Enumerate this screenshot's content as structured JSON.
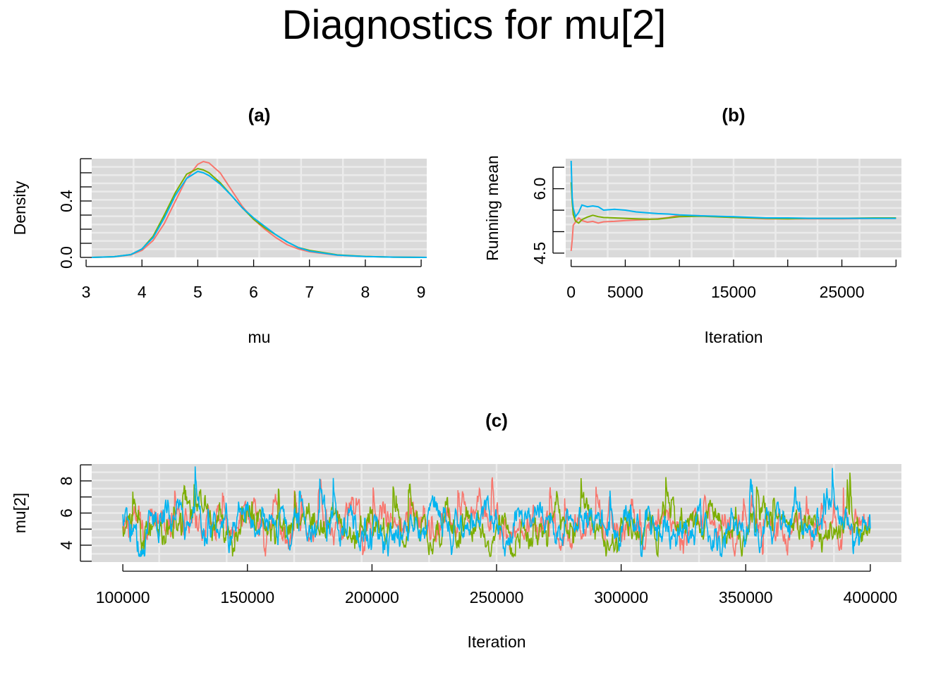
{
  "page": {
    "title": "Diagnostics for mu[2]",
    "chain_colors": [
      "#F8766D",
      "#7CAE00",
      "#00B4F0"
    ],
    "panel_background": "#DADADA",
    "grid_color": "#EBEBEB"
  },
  "chart_data": [
    {
      "id": "a",
      "type": "line",
      "title": "(a)",
      "xlabel": "mu",
      "ylabel": "Density",
      "xlim": [
        3.1,
        9.1
      ],
      "ylim": [
        0,
        0.7
      ],
      "xticks": [
        3,
        4,
        5,
        6,
        7,
        8,
        9
      ],
      "yticks": [
        0.0,
        0.4
      ],
      "ytick_labels": [
        "0.0",
        "0.4"
      ],
      "minor_yticks": [
        0.0,
        0.1,
        0.2,
        0.3,
        0.4,
        0.5,
        0.6,
        0.7
      ],
      "grid": true,
      "x": [
        3.1,
        3.5,
        3.8,
        4.0,
        4.2,
        4.4,
        4.6,
        4.8,
        5.0,
        5.1,
        5.2,
        5.4,
        5.6,
        5.8,
        6.0,
        6.2,
        6.4,
        6.6,
        6.8,
        7.0,
        7.5,
        8.0,
        8.5,
        9.1
      ],
      "series": [
        {
          "values": [
            0.0,
            0.004,
            0.018,
            0.05,
            0.12,
            0.24,
            0.4,
            0.56,
            0.66,
            0.68,
            0.67,
            0.6,
            0.48,
            0.36,
            0.27,
            0.2,
            0.14,
            0.09,
            0.06,
            0.04,
            0.015,
            0.006,
            0.002,
            0.0
          ]
        },
        {
          "values": [
            0.0,
            0.005,
            0.02,
            0.06,
            0.15,
            0.3,
            0.46,
            0.59,
            0.63,
            0.62,
            0.6,
            0.53,
            0.44,
            0.35,
            0.27,
            0.21,
            0.16,
            0.11,
            0.07,
            0.05,
            0.018,
            0.007,
            0.002,
            0.0
          ]
        },
        {
          "values": [
            0.0,
            0.005,
            0.02,
            0.06,
            0.14,
            0.28,
            0.44,
            0.56,
            0.61,
            0.6,
            0.58,
            0.52,
            0.44,
            0.35,
            0.28,
            0.22,
            0.16,
            0.11,
            0.07,
            0.045,
            0.016,
            0.006,
            0.002,
            0.0
          ]
        }
      ]
    },
    {
      "id": "b",
      "type": "line",
      "title": "(b)",
      "xlabel": "Iteration",
      "ylabel": "Running mean",
      "xlim": [
        -500,
        30500
      ],
      "ylim": [
        4.4,
        6.7
      ],
      "xticks": [
        0,
        5000,
        10000,
        15000,
        20000,
        25000,
        30000
      ],
      "xtick_labels": [
        "0",
        "5000",
        "",
        "15000",
        "",
        "25000",
        ""
      ],
      "yticks": [
        4.5,
        6.0
      ],
      "ytick_labels": [
        "4.5",
        "6.0"
      ],
      "minor_yticks": [
        4.5,
        5.0,
        5.5,
        6.0,
        6.5
      ],
      "grid": true,
      "x": [
        0,
        100,
        200,
        400,
        700,
        1000,
        1500,
        2000,
        2500,
        3000,
        4000,
        5000,
        6000,
        7000,
        8000,
        9000,
        10000,
        12000,
        15000,
        18000,
        20000,
        22000,
        25000,
        28000,
        30000
      ],
      "series": [
        {
          "values": [
            4.55,
            4.8,
            5.15,
            5.22,
            5.32,
            5.26,
            5.22,
            5.24,
            5.2,
            5.23,
            5.24,
            5.26,
            5.27,
            5.28,
            5.3,
            5.33,
            5.38,
            5.37,
            5.33,
            5.3,
            5.3,
            5.3,
            5.3,
            5.31,
            5.31
          ]
        },
        {
          "values": [
            6.15,
            5.7,
            5.4,
            5.25,
            5.2,
            5.28,
            5.34,
            5.38,
            5.35,
            5.33,
            5.32,
            5.31,
            5.3,
            5.29,
            5.29,
            5.32,
            5.35,
            5.36,
            5.33,
            5.31,
            5.3,
            5.31,
            5.31,
            5.32,
            5.32
          ]
        },
        {
          "values": [
            6.65,
            5.8,
            5.55,
            5.35,
            5.45,
            5.62,
            5.58,
            5.6,
            5.58,
            5.5,
            5.52,
            5.5,
            5.46,
            5.44,
            5.42,
            5.41,
            5.39,
            5.37,
            5.35,
            5.32,
            5.32,
            5.31,
            5.31,
            5.31,
            5.31
          ]
        }
      ]
    },
    {
      "id": "c",
      "type": "line",
      "title": "(c)",
      "xlabel": "Iteration",
      "ylabel": "mu[2]",
      "xlim": [
        87500,
        412500
      ],
      "ylim": [
        2.95,
        9.05
      ],
      "xticks": [
        100000,
        150000,
        200000,
        250000,
        300000,
        350000,
        400000
      ],
      "xtick_labels": [
        "100000",
        "150000",
        "200000",
        "250000",
        "300000",
        "350000",
        "400000"
      ],
      "yticks": [
        4,
        6,
        8
      ],
      "ytick_labels": [
        "4",
        "6",
        "8"
      ],
      "minor_yticks": [
        3,
        4,
        5,
        6,
        7,
        8,
        9
      ],
      "grid": true,
      "trace_summary": {
        "x_start": 100000,
        "x_end": 400000,
        "center": 5.2,
        "typical_min": 3.5,
        "typical_max": 8.9
      },
      "series": [
        {
          "values": []
        },
        {
          "values": []
        },
        {
          "values": []
        }
      ]
    }
  ]
}
